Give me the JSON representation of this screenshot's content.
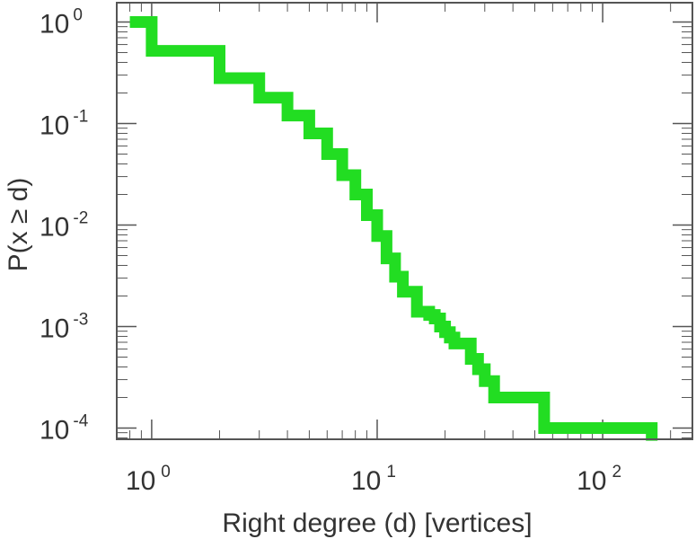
{
  "chart_data": {
    "type": "line",
    "step": true,
    "title": "",
    "xlabel": "Right degree (d) [vertices]",
    "ylabel": "P(x ≥ d)",
    "xscale": "log",
    "yscale": "log",
    "xlim": [
      0.7,
      250
    ],
    "ylim": [
      7.75e-05,
      1.55
    ],
    "grid": false,
    "legend": "none",
    "x_ticks": [
      {
        "base": "10",
        "exp": "0",
        "value": 1
      },
      {
        "base": "10",
        "exp": "1",
        "value": 10
      },
      {
        "base": "10",
        "exp": "2",
        "value": 100
      }
    ],
    "y_ticks": [
      {
        "base": "10",
        "exp": "0",
        "value": 1
      },
      {
        "base": "10",
        "exp": "-1",
        "value": 0.1
      },
      {
        "base": "10",
        "exp": "-2",
        "value": 0.01
      },
      {
        "base": "10",
        "exp": "-3",
        "value": 0.001
      },
      {
        "base": "10",
        "exp": "-4",
        "value": 0.0001
      }
    ],
    "series": [
      {
        "color": "#22dd22",
        "x": [
          0.8,
          1,
          2,
          3,
          4,
          5,
          6,
          7,
          8,
          9,
          10,
          11,
          12,
          13,
          15,
          17,
          18,
          19,
          20,
          21,
          22,
          26,
          28,
          30,
          33,
          55,
          165
        ],
        "y": [
          1.0,
          0.52,
          0.28,
          0.18,
          0.12,
          0.08,
          0.05,
          0.031,
          0.02,
          0.0125,
          0.0078,
          0.0047,
          0.0031,
          0.0022,
          0.0014,
          0.0013,
          0.0012,
          0.001,
          0.00088,
          0.00078,
          0.00068,
          0.00048,
          0.00038,
          0.00029,
          0.0002,
          0.0001,
          7.5e-05
        ]
      }
    ]
  }
}
